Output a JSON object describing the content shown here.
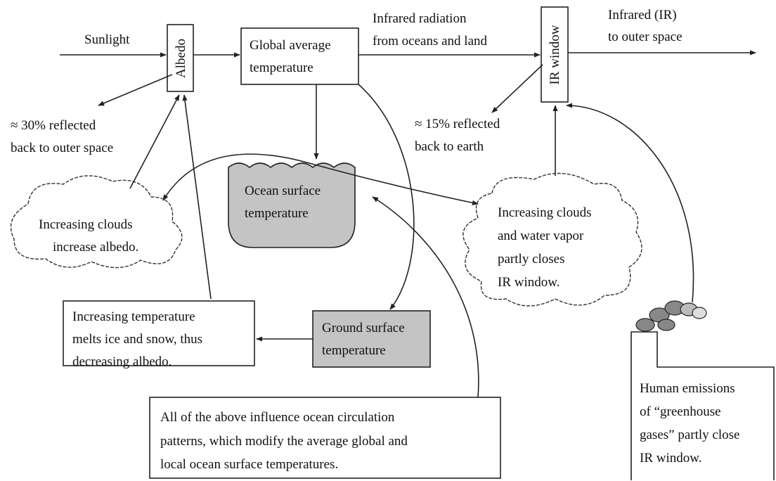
{
  "nodes": [
    {
      "lines": [
        "Sunlight"
      ]
    },
    {
      "lines": [
        "Albedo"
      ]
    },
    {
      "lines": [
        "Global average",
        "temperature"
      ]
    },
    {
      "lines": [
        "Infrared radiation",
        "from oceans and land"
      ]
    },
    {
      "lines": [
        "IR window"
      ]
    },
    {
      "lines": [
        "Infrared (IR)",
        "to outer space"
      ]
    },
    {
      "lines": [
        "≈ 30% reflected",
        "back to outer space"
      ]
    },
    {
      "lines": [
        "≈ 15% reflected",
        "back to earth"
      ]
    },
    {
      "lines": [
        "Ocean surface",
        "temperature"
      ]
    },
    {
      "lines": [
        "Increasing clouds",
        "increase albedo."
      ]
    },
    {
      "lines": [
        "Increasing clouds",
        "and water vapor",
        "partly closes",
        "IR window."
      ]
    },
    {
      "lines": [
        "Increasing temperature",
        "melts ice and snow, thus",
        "decreasing albedo."
      ]
    },
    {
      "lines": [
        "Ground surface",
        "temperature"
      ]
    },
    {
      "lines": [
        "All of the above influence ocean circulation",
        "patterns, which modify the average global and",
        "local ocean surface temperatures."
      ]
    },
    {
      "lines": [
        "Human emissions",
        "of “greenhouse",
        "gases” partly close",
        "IR window."
      ]
    }
  ]
}
